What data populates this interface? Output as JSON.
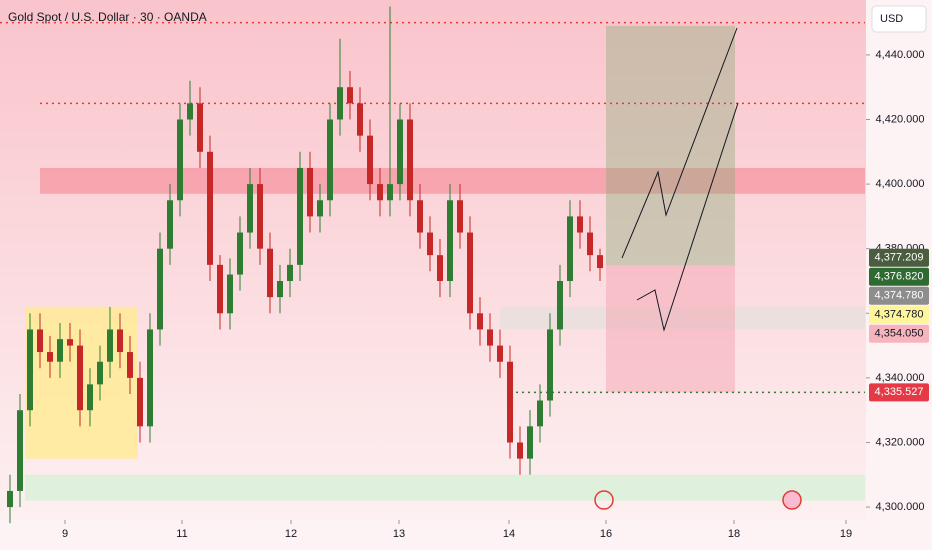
{
  "chart_data": {
    "type": "candlestick",
    "title": "Gold Spot / U.S. Dollar · 30 · OANDA",
    "currency": "USD",
    "up_color": "#2e7d32",
    "down_color": "#c62828",
    "x": [
      1,
      2,
      3,
      4,
      5,
      6,
      7,
      8,
      9,
      10,
      11,
      12,
      13,
      14,
      15,
      16,
      17,
      18,
      19,
      20,
      21,
      22,
      23,
      24,
      25,
      26,
      27,
      28,
      29,
      30,
      31,
      32,
      33,
      34,
      35,
      36,
      37,
      38,
      39,
      40,
      41,
      42,
      43,
      44,
      45,
      46,
      47,
      48,
      49,
      50,
      51,
      52,
      53,
      54,
      55,
      56,
      57,
      58,
      59,
      60
    ],
    "open": [
      4300,
      4305,
      4330,
      4355,
      4348,
      4345,
      4352,
      4350,
      4330,
      4338,
      4345,
      4355,
      4348,
      4340,
      4325,
      4355,
      4380,
      4395,
      4420,
      4425,
      4410,
      4375,
      4360,
      4372,
      4385,
      4400,
      4380,
      4365,
      4370,
      4375,
      4405,
      4390,
      4395,
      4420,
      4430,
      4425,
      4415,
      4400,
      4395,
      4400,
      4420,
      4395,
      4385,
      4378,
      4370,
      4395,
      4385,
      4360,
      4355,
      4350,
      4345,
      4320,
      4315,
      4325,
      4333,
      4355,
      4370,
      4390,
      4385,
      4378
    ],
    "high": [
      4310,
      4335,
      4360,
      4360,
      4353,
      4357,
      4357,
      4355,
      4343,
      4350,
      4362,
      4360,
      4353,
      4345,
      4360,
      4385,
      4400,
      4425,
      4432,
      4430,
      4415,
      4378,
      4377,
      4390,
      4405,
      4405,
      4385,
      4375,
      4380,
      4410,
      4410,
      4400,
      4425,
      4445,
      4435,
      4430,
      4420,
      4405,
      4455,
      4425,
      4425,
      4400,
      4390,
      4383,
      4400,
      4400,
      4390,
      4365,
      4360,
      4355,
      4350,
      4325,
      4330,
      4338,
      4360,
      4375,
      4395,
      4395,
      4390,
      4380
    ],
    "low": [
      4295,
      4300,
      4325,
      4343,
      4340,
      4340,
      4345,
      4325,
      4325,
      4333,
      4340,
      4343,
      4335,
      4320,
      4320,
      4350,
      4375,
      4390,
      4415,
      4405,
      4370,
      4355,
      4355,
      4367,
      4380,
      4375,
      4360,
      4360,
      4365,
      4370,
      4385,
      4385,
      4390,
      4415,
      4420,
      4410,
      4395,
      4390,
      4390,
      4395,
      4390,
      4380,
      4373,
      4365,
      4365,
      4380,
      4355,
      4350,
      4345,
      4340,
      4315,
      4310,
      4310,
      4320,
      4328,
      4350,
      4365,
      4380,
      4373,
      4370
    ],
    "close": [
      4305,
      4330,
      4355,
      4348,
      4345,
      4352,
      4350,
      4330,
      4338,
      4345,
      4355,
      4348,
      4340,
      4325,
      4355,
      4380,
      4395,
      4420,
      4425,
      4410,
      4375,
      4360,
      4372,
      4385,
      4400,
      4380,
      4365,
      4370,
      4375,
      4405,
      4390,
      4395,
      4420,
      4430,
      4425,
      4415,
      4400,
      4395,
      4400,
      4420,
      4395,
      4385,
      4378,
      4370,
      4395,
      4385,
      4360,
      4355,
      4350,
      4345,
      4320,
      4315,
      4325,
      4333,
      4355,
      4370,
      4390,
      4385,
      4378,
      4374
    ],
    "xlim": [
      0,
      86.5
    ],
    "xticks": [
      {
        "value": 6.5,
        "label": "9"
      },
      {
        "value": 18.2,
        "label": "11"
      },
      {
        "value": 29.1,
        "label": "12"
      },
      {
        "value": 39.9,
        "label": "13"
      },
      {
        "value": 50.9,
        "label": "14"
      },
      {
        "value": 60.6,
        "label": "16"
      },
      {
        "value": 73.4,
        "label": "18"
      },
      {
        "value": 84.6,
        "label": "19"
      }
    ],
    "ylim": [
      4296,
      4457
    ],
    "yticks": [
      {
        "value": 4300,
        "label": "4,300.000"
      },
      {
        "value": 4320,
        "label": "4,320.000"
      },
      {
        "value": 4340,
        "label": "4,340.000"
      },
      {
        "value": 4360,
        "label": "4,360.000"
      },
      {
        "value": 4380,
        "label": "4,380.000"
      },
      {
        "value": 4400,
        "label": "4,400.000"
      },
      {
        "value": 4420,
        "label": "4,420.000"
      },
      {
        "value": 4440,
        "label": "4,440.000"
      }
    ],
    "zones": [
      {
        "range": [
          4397,
          4405
        ],
        "x": [
          4,
          86.5
        ],
        "color": "rgba(240,80,100,0.35)"
      },
      {
        "range": [
          4315,
          4362
        ],
        "x": [
          2.5,
          13.8
        ],
        "color": "rgba(255,235,150,0.85)"
      },
      {
        "range": [
          4302,
          4310
        ],
        "x": [
          2.5,
          86.5
        ],
        "color": "rgba(215,240,215,0.8)"
      },
      {
        "range": [
          4355,
          4362
        ],
        "x": [
          50,
          86.5
        ],
        "color": "rgba(225,225,220,0.6)"
      }
    ],
    "levels": [
      {
        "value": 4450,
        "x": [
          0,
          86.5
        ],
        "color": "#e53935"
      },
      {
        "value": 4425,
        "x": [
          4,
          86.5
        ],
        "color": "#e53935"
      },
      {
        "value": 4335.527,
        "x": [
          51,
          86.5
        ],
        "color": "#2e7d32"
      }
    ],
    "position": {
      "entry": 4374.78,
      "target": 4449,
      "stop": 4335.527,
      "x": [
        60.6,
        73.5
      ]
    },
    "price_tags": [
      {
        "value": 4377.209,
        "label": "4,377.209",
        "color": "#4a5d3f"
      },
      {
        "value": 4376.82,
        "label": "4,376.820",
        "color": "#2e6b30"
      },
      {
        "value": 4374.78,
        "label": "4,374.780",
        "color": "#8d8d8d"
      },
      {
        "value": 4374.78,
        "label": "4,374.780",
        "color": "#fff59d"
      },
      {
        "value": 4354.05,
        "label": "4,354.050",
        "color": "#f8b4bd"
      },
      {
        "value": 4335.527,
        "label": "4,335.527",
        "color": "#e53945"
      }
    ]
  }
}
